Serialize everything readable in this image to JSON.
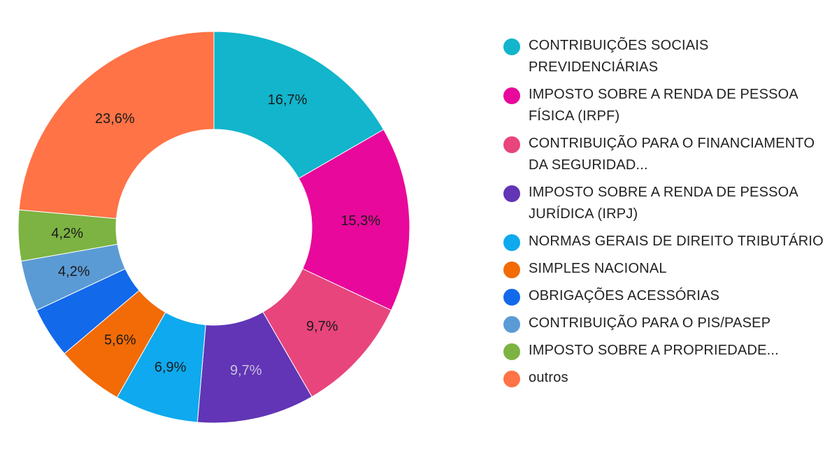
{
  "chart_data": {
    "type": "pie",
    "style": "donut",
    "legend_position": "right",
    "series": [
      {
        "label": "CONTRIBUIÇÕES SOCIAIS PREVIDENCIÁRIAS",
        "legend_text": "CONTRIBUIÇÕES SOCIAIS PREVIDENCIÁRIAS",
        "value": 16.7,
        "value_label": "16,7%",
        "color": "#12B5CB",
        "label_color": "#1a1a1a"
      },
      {
        "label": "IMPOSTO SOBRE A RENDA DE PESSOA FÍSICA (IRPF)",
        "legend_text": "IMPOSTO SOBRE A RENDA DE PESSOA FÍSICA (IRPF)",
        "value": 15.3,
        "value_label": "15,3%",
        "color": "#E8089B",
        "label_color": "#1a1a1a"
      },
      {
        "label": "CONTRIBUIÇÃO PARA O FINANCIAMENTO DA SEGURIDAD...",
        "legend_text": "CONTRIBUIÇÃO PARA O FINANCIAMENTO DA SEGURIDAD...",
        "value": 9.7,
        "value_label": "9,7%",
        "color": "#E8457D",
        "label_color": "#1a1a1a"
      },
      {
        "label": "IMPOSTO SOBRE A RENDA DE PESSOA JURÍDICA (IRPJ)",
        "legend_text": "IMPOSTO SOBRE A RENDA DE PESSOA JURÍDICA (IRPJ)",
        "value": 9.7,
        "value_label": "9,7%",
        "color": "#6135B5",
        "label_color": "#c9c2dd"
      },
      {
        "label": "NORMAS GERAIS DE DIREITO TRIBUTÁRIO",
        "legend_text": "NORMAS GERAIS DE DIREITO TRIBUTÁRIO",
        "value": 6.9,
        "value_label": "6,9%",
        "color": "#0EA9EE",
        "label_color": "#1a1a1a"
      },
      {
        "label": "SIMPLES NACIONAL",
        "legend_text": "SIMPLES NACIONAL",
        "value": 5.6,
        "value_label": "5,6%",
        "color": "#F26B06",
        "label_color": "#1a1a1a"
      },
      {
        "label": "OBRIGAÇÕES ACESSÓRIAS",
        "legend_text": "OBRIGAÇÕES ACESSÓRIAS",
        "value": 4.2,
        "value_label": "",
        "color": "#1269EA",
        "label_color": "#1a1a1a"
      },
      {
        "label": "CONTRIBUIÇÃO PARA O PIS/PASEP",
        "legend_text": "CONTRIBUIÇÃO PARA O PIS/PASEP",
        "value": 4.2,
        "value_label": "4,2%",
        "color": "#5B9BD5",
        "label_color": "#1a1a1a"
      },
      {
        "label": "IMPOSTO SOBRE A PROPRIEDADE...",
        "legend_text": "IMPOSTO SOBRE A PROPRIEDADE...",
        "value": 4.2,
        "value_label": "4,2%",
        "color": "#7CB342",
        "label_color": "#1a1a1a"
      },
      {
        "label": "outros",
        "legend_text": "outros",
        "value": 23.6,
        "value_label": "23,6%",
        "color": "#FF7346",
        "label_color": "#1a1a1a"
      }
    ]
  }
}
